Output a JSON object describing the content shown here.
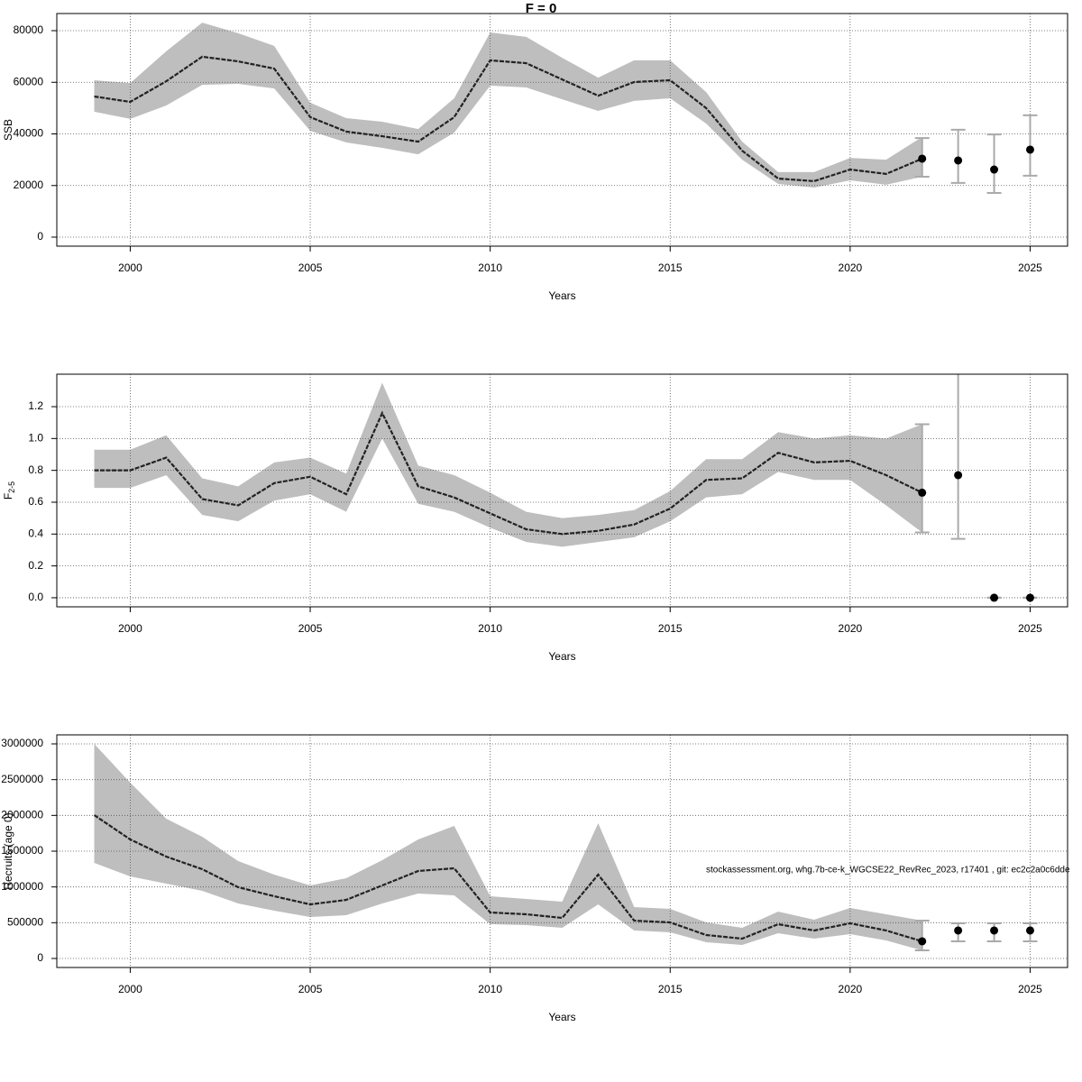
{
  "chart_data": [
    {
      "type": "line",
      "title": "F = 0",
      "xlabel": "Years",
      "ylabel": "SSB",
      "x": [
        1999,
        2000,
        2001,
        2002,
        2003,
        2004,
        2005,
        2006,
        2007,
        2008,
        2009,
        2010,
        2011,
        2012,
        2013,
        2014,
        2015,
        2016,
        2017,
        2018,
        2019,
        2020,
        2021,
        2022
      ],
      "values": [
        54500,
        52400,
        60400,
        69900,
        68100,
        65300,
        46500,
        40900,
        39100,
        37000,
        46500,
        68500,
        67400,
        61100,
        54800,
        60100,
        60800,
        50000,
        33500,
        22700,
        21700,
        26200,
        24500,
        30400
      ],
      "lower": [
        48600,
        45800,
        51000,
        59000,
        59400,
        57600,
        41200,
        36700,
        34600,
        32100,
        40500,
        58700,
        58000,
        53400,
        48900,
        52800,
        53800,
        44000,
        30000,
        20600,
        19200,
        22000,
        20300,
        23400
      ],
      "upper": [
        60800,
        59700,
        72000,
        83100,
        79000,
        74100,
        52100,
        46100,
        44700,
        41900,
        53800,
        79300,
        77600,
        69500,
        61800,
        68500,
        68500,
        56200,
        37000,
        25200,
        25200,
        30700,
        30000,
        38800
      ],
      "forecast": {
        "x": [
          2022,
          2023,
          2024,
          2025
        ],
        "values": [
          30400,
          29700,
          26200,
          33900
        ],
        "lower": [
          23400,
          21000,
          17100,
          23800
        ],
        "upper": [
          38400,
          41600,
          39800,
          47200
        ]
      },
      "xlim": [
        1997.96,
        2026.04
      ],
      "xticks": [
        2000,
        2005,
        2010,
        2015,
        2020,
        2025
      ],
      "ylim": [
        -3490,
        86640
      ],
      "yticks": [
        0,
        20000,
        40000,
        60000,
        80000
      ],
      "grid": true,
      "band_color": "#bebebe",
      "line_color": "#222222",
      "bar_color": "#aaaaaa"
    },
    {
      "type": "line",
      "xlabel": "Years",
      "ylabel": "F",
      "ylabel_subscript": "2-5",
      "x": [
        1999,
        2000,
        2001,
        2002,
        2003,
        2004,
        2005,
        2006,
        2007,
        2008,
        2009,
        2010,
        2011,
        2012,
        2013,
        2014,
        2015,
        2016,
        2017,
        2018,
        2019,
        2020,
        2021,
        2022
      ],
      "values": [
        0.8,
        0.8,
        0.88,
        0.62,
        0.58,
        0.72,
        0.76,
        0.65,
        1.16,
        0.7,
        0.63,
        0.53,
        0.43,
        0.4,
        0.42,
        0.46,
        0.56,
        0.74,
        0.75,
        0.91,
        0.85,
        0.86,
        0.77,
        0.66
      ],
      "lower": [
        0.69,
        0.69,
        0.77,
        0.52,
        0.48,
        0.61,
        0.65,
        0.54,
        1.0,
        0.59,
        0.54,
        0.44,
        0.35,
        0.32,
        0.35,
        0.38,
        0.48,
        0.63,
        0.65,
        0.79,
        0.74,
        0.74,
        0.58,
        0.41
      ],
      "upper": [
        0.93,
        0.93,
        1.02,
        0.75,
        0.7,
        0.85,
        0.88,
        0.78,
        1.35,
        0.83,
        0.77,
        0.66,
        0.54,
        0.5,
        0.52,
        0.55,
        0.67,
        0.87,
        0.87,
        1.04,
        1.0,
        1.02,
        1.0,
        1.09
      ],
      "forecast": {
        "x": [
          2022,
          2023,
          2024,
          2025
        ],
        "values": [
          0.66,
          0.77,
          0,
          0
        ],
        "lower": [
          0.41,
          0.37,
          0,
          0
        ],
        "upper": [
          1.09,
          1.45,
          0,
          0
        ]
      },
      "xlim": [
        1997.96,
        2026.04
      ],
      "xticks": [
        2000,
        2005,
        2010,
        2015,
        2020,
        2025
      ],
      "ylim": [
        -0.057,
        1.404
      ],
      "yticks": [
        {
          "value": 0,
          "label": "0.0"
        },
        0.2,
        0.4,
        0.6,
        0.8,
        {
          "value": 1,
          "label": "1.0"
        },
        1.2
      ],
      "grid": true,
      "band_color": "#bebebe",
      "line_color": "#222222",
      "bar_color": "#aaaaaa"
    },
    {
      "type": "line",
      "xlabel": "Years",
      "ylabel": "Recruits (age 0)",
      "x": [
        1999,
        2000,
        2001,
        2002,
        2003,
        2004,
        2005,
        2006,
        2007,
        2008,
        2009,
        2010,
        2011,
        2012,
        2013,
        2014,
        2015,
        2016,
        2017,
        2018,
        2019,
        2020,
        2021,
        2022
      ],
      "values": [
        2004000,
        1664000,
        1424000,
        1248000,
        996000,
        870000,
        756000,
        819000,
        1021000,
        1223000,
        1261000,
        643000,
        618000,
        567000,
        1172000,
        529000,
        504000,
        328000,
        277000,
        479000,
        391000,
        492000,
        391000,
        240000
      ],
      "lower": [
        1336000,
        1147000,
        1046000,
        945000,
        769000,
        668000,
        580000,
        605000,
        769000,
        908000,
        882000,
        479000,
        466000,
        429000,
        756000,
        391000,
        366000,
        227000,
        189000,
        353000,
        277000,
        340000,
        252000,
        113000
      ],
      "upper": [
        3000000,
        2458000,
        1954000,
        1702000,
        1361000,
        1172000,
        1021000,
        1122000,
        1374000,
        1664000,
        1853000,
        870000,
        832000,
        794000,
        1891000,
        718000,
        693000,
        504000,
        429000,
        655000,
        542000,
        706000,
        618000,
        529000
      ],
      "forecast": {
        "x": [
          2022,
          2023,
          2024,
          2025
        ],
        "values": [
          240000,
          391000,
          391000,
          391000
        ],
        "lower": [
          113000,
          240000,
          240000,
          240000
        ],
        "upper": [
          529000,
          492000,
          492000,
          492000
        ]
      },
      "xlim": [
        1997.96,
        2026.04
      ],
      "xticks": [
        2000,
        2005,
        2010,
        2015,
        2020,
        2025
      ],
      "ylim": [
        -126000,
        3126000
      ],
      "yticks": [
        0,
        500000,
        1000000,
        1500000,
        2000000,
        2500000,
        3000000
      ],
      "grid": true,
      "band_color": "#bebebe",
      "line_color": "#222222",
      "bar_color": "#aaaaaa"
    }
  ],
  "footnote": "stockassessment.org, whg.7b-ce-k_WGCSE22_RevRec_2023, r17401 , git: ec2c2a0c6dde"
}
